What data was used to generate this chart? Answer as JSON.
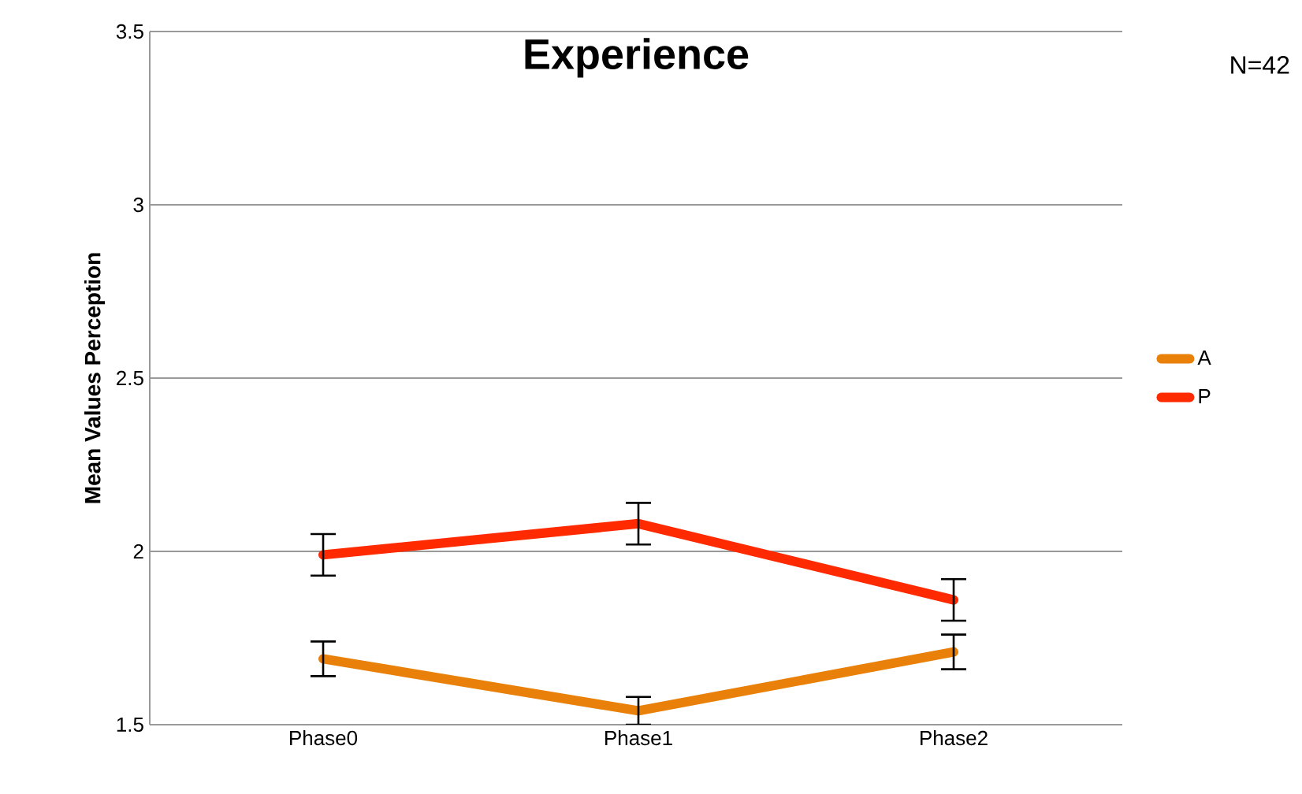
{
  "chart_data": {
    "type": "line",
    "title": "Experience",
    "ylabel": "Mean Values Perception",
    "annotations": [
      "N=42"
    ],
    "categories": [
      "Phase0",
      "Phase1",
      "Phase2"
    ],
    "series": [
      {
        "name": "A",
        "color": "#e8800a",
        "values": [
          1.69,
          1.54,
          1.71
        ],
        "errors": [
          0.05,
          0.04,
          0.05
        ]
      },
      {
        "name": "P",
        "color": "#ff2a00",
        "values": [
          1.99,
          2.08,
          1.86
        ],
        "errors": [
          0.06,
          0.06,
          0.06
        ]
      }
    ],
    "ylim": [
      1.5,
      3.5
    ],
    "yticks": [
      1.5,
      2,
      2.5,
      3,
      3.5
    ],
    "grid": "y",
    "legend": "right",
    "marker": "none",
    "line_style": "solid"
  }
}
